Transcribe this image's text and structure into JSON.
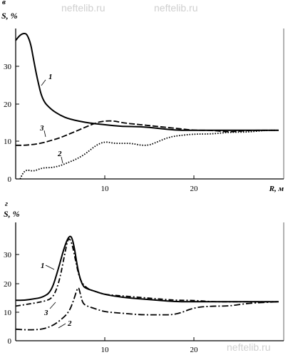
{
  "chart_data": [
    {
      "type": "line",
      "panel_label": "в",
      "ylabel": "S, %",
      "xlabel": "R, м",
      "xlim": [
        0,
        30
      ],
      "ylim": [
        0,
        40
      ],
      "x_ticks": [
        "10",
        "20"
      ],
      "y_ticks": [
        "0",
        "10",
        "20",
        "30"
      ],
      "series": [
        {
          "name": "1",
          "style": "solid",
          "x": [
            0,
            0.5,
            1,
            1.3,
            1.7,
            2,
            2.4,
            3,
            4,
            5,
            6,
            8,
            10,
            12,
            14,
            16,
            18,
            20,
            24,
            27,
            29.5
          ],
          "values": [
            37,
            38.5,
            39,
            38.5,
            36,
            32,
            27,
            21,
            18.5,
            17,
            16,
            15,
            14.5,
            14,
            14,
            13.5,
            13,
            13,
            13,
            13,
            13
          ]
        },
        {
          "name": "2",
          "style": "dotted",
          "x": [
            0.5,
            0.8,
            1.2,
            2,
            3,
            4,
            5,
            6,
            7,
            8,
            9,
            10,
            11,
            12,
            13,
            14,
            15,
            16,
            17,
            18,
            20,
            22,
            24,
            26,
            28,
            29.5
          ],
          "values": [
            0,
            1.5,
            2.5,
            2,
            3,
            3,
            3.5,
            4.5,
            5.5,
            7,
            9,
            10,
            9.5,
            9.5,
            9.5,
            9,
            9,
            10,
            11,
            11.5,
            12,
            12,
            12.5,
            12.5,
            13,
            13
          ]
        },
        {
          "name": "3",
          "style": "dashed",
          "x": [
            0,
            1,
            2,
            3,
            4,
            5,
            6,
            7,
            8,
            9,
            10,
            11,
            12,
            14,
            16,
            18,
            20,
            22,
            24,
            26,
            29.5
          ],
          "values": [
            9,
            9,
            9.2,
            9.6,
            10.3,
            11,
            12,
            13,
            14,
            15,
            15.5,
            15.5,
            15,
            14.5,
            14,
            13.5,
            13,
            13,
            12.5,
            13,
            13
          ]
        }
      ],
      "annotations": [
        "1",
        "2",
        "3"
      ]
    },
    {
      "type": "line",
      "panel_label": "г",
      "ylabel": "S, %",
      "xlabel": "",
      "xlim": [
        0,
        30
      ],
      "ylim": [
        0,
        40
      ],
      "x_ticks": [
        "10",
        "20"
      ],
      "y_ticks": [
        "0",
        "10",
        "20",
        "30"
      ],
      "series": [
        {
          "name": "1",
          "style": "solid",
          "x": [
            0,
            1,
            2,
            3,
            4,
            4.8,
            5.5,
            6.1,
            6.5,
            7,
            7.5,
            8,
            9,
            10,
            12,
            14,
            16,
            18,
            20,
            24,
            29.5
          ],
          "values": [
            14,
            14,
            14.5,
            15,
            17,
            25,
            33,
            37,
            34,
            24,
            19,
            18,
            17,
            16,
            15,
            14.5,
            14,
            13.5,
            13.5,
            13.5,
            13.5
          ]
        },
        {
          "name": "2",
          "style": "dash-dot",
          "x": [
            0,
            1,
            2,
            3,
            4,
            5,
            6,
            6.5,
            7,
            7.2,
            7.5,
            8,
            9,
            10,
            12,
            14,
            16,
            18,
            20,
            22,
            24,
            26,
            29.5
          ],
          "values": [
            4,
            3.8,
            3.8,
            4,
            5,
            7,
            10,
            14,
            19,
            17,
            13,
            12,
            11,
            10,
            9.5,
            9,
            9,
            9,
            11.5,
            12,
            12,
            13,
            13.5
          ]
        },
        {
          "name": "3",
          "style": "dash-dot",
          "x": [
            0,
            1,
            2,
            3,
            4,
            4.5,
            5,
            5.5,
            5.9,
            6.3,
            6.7,
            7.2,
            8,
            9,
            10,
            12,
            14,
            16,
            18,
            20,
            22,
            24,
            26,
            29.5
          ],
          "values": [
            12,
            12.5,
            13,
            13.5,
            14.5,
            17,
            22,
            30,
            36,
            34,
            28,
            21,
            18,
            17,
            16,
            15.5,
            15,
            14.5,
            14,
            14,
            13.5,
            13.5,
            13.5,
            13.5
          ]
        }
      ],
      "annotations": [
        "1",
        "2",
        "3"
      ]
    }
  ],
  "watermarks": [
    "neftelib.ru",
    "neftelib.ru",
    "neftelib.ru"
  ]
}
